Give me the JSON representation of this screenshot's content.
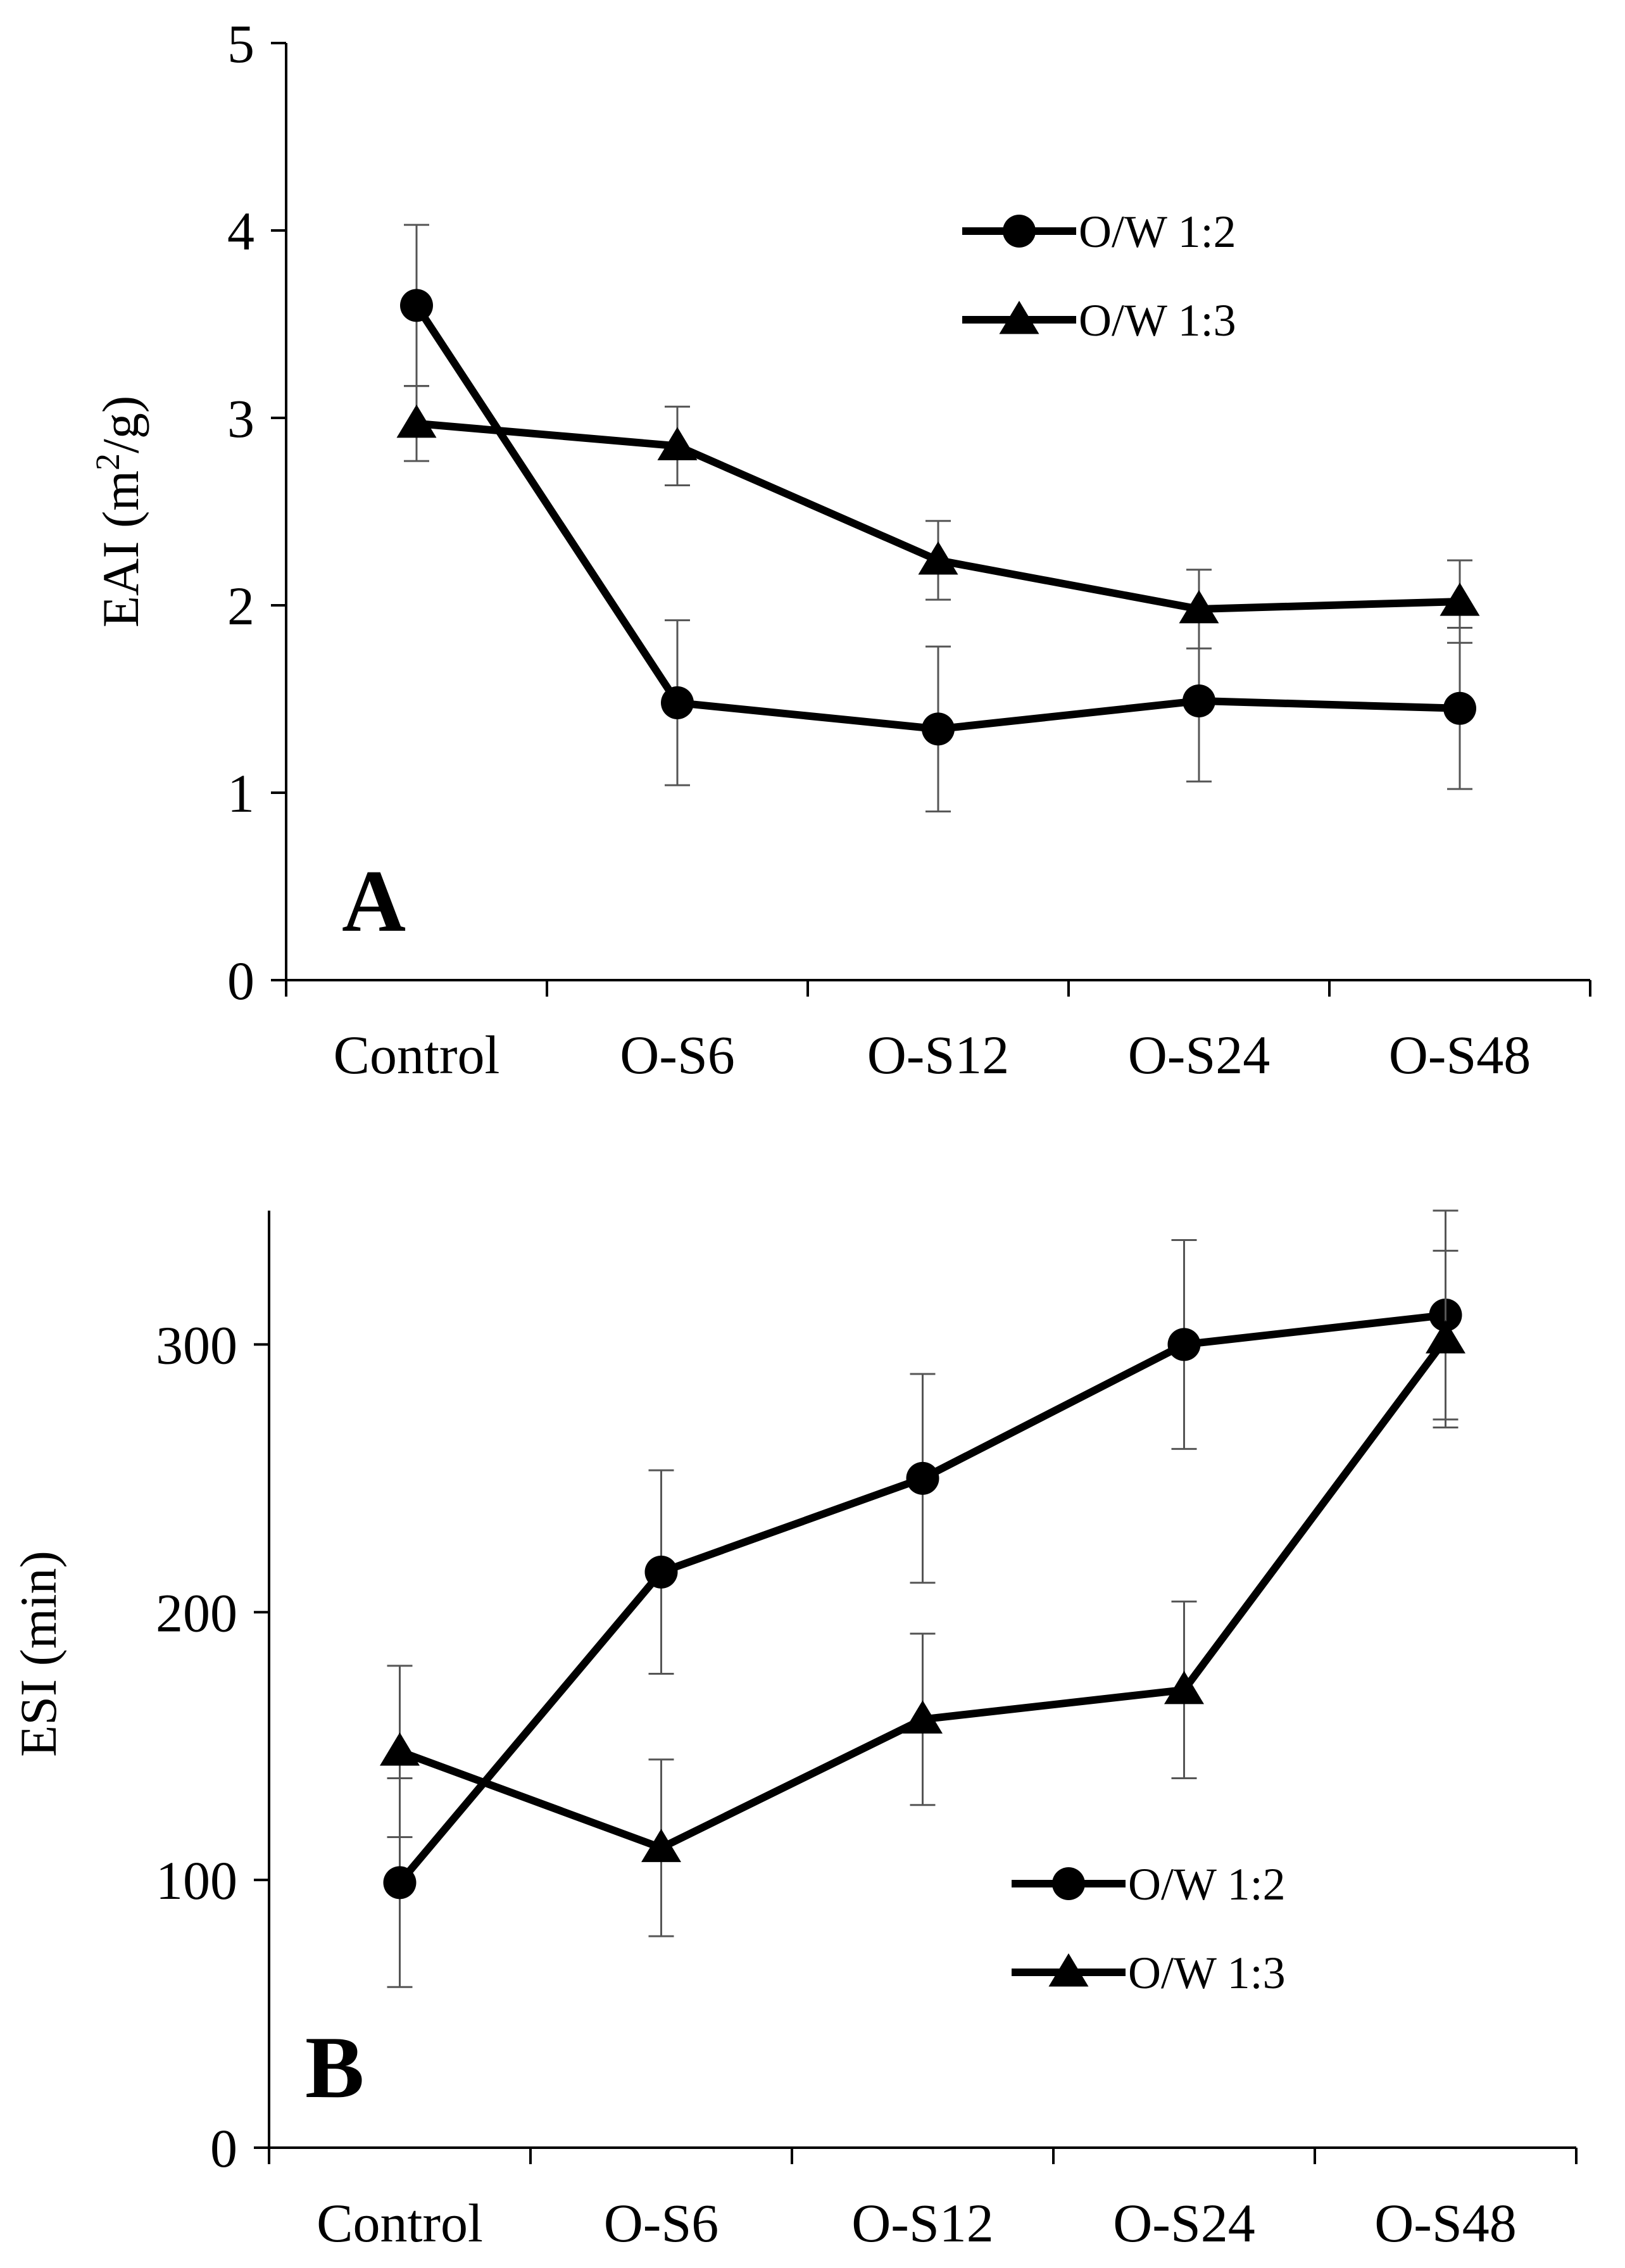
{
  "chart_data": [
    {
      "id": "A",
      "type": "line",
      "panel_label": "A",
      "ylabel_pre": "EAI (m",
      "ylabel_sup": "2",
      "ylabel_post": "/g)",
      "xlabel": "",
      "ylim": [
        0,
        5
      ],
      "yticks": [
        0,
        1,
        2,
        3,
        4,
        5
      ],
      "categories": [
        "Control",
        "O-S6",
        "O-S12",
        "O-S24",
        "O-S48"
      ],
      "legend_position": "top-right",
      "series": [
        {
          "name": "O/W 1:2",
          "marker": "circle",
          "values": [
            3.6,
            1.48,
            1.34,
            1.49,
            1.45
          ],
          "errors": [
            0.43,
            0.44,
            0.44,
            0.43,
            0.43
          ]
        },
        {
          "name": "O/W 1:3",
          "marker": "triangle",
          "values": [
            2.97,
            2.85,
            2.24,
            1.98,
            2.02
          ],
          "errors": [
            0.2,
            0.21,
            0.21,
            0.21,
            0.22
          ]
        }
      ]
    },
    {
      "id": "B",
      "type": "line",
      "panel_label": "B",
      "ylabel_pre": "ESI (min)",
      "ylabel_sup": "",
      "ylabel_post": "",
      "xlabel": "",
      "ylim": [
        0,
        350
      ],
      "yticks": [
        0,
        100,
        200,
        300
      ],
      "categories": [
        "Control",
        "O-S6",
        "O-S12",
        "O-S24",
        "O-S48"
      ],
      "legend_position": "bottom-right",
      "series": [
        {
          "name": "O/W 1:2",
          "marker": "circle",
          "values": [
            99,
            215,
            250,
            300,
            311
          ],
          "errors": [
            39,
            38,
            39,
            39,
            39
          ]
        },
        {
          "name": "O/W 1:3",
          "marker": "triangle",
          "values": [
            148,
            112,
            160,
            171,
            302
          ],
          "errors": [
            32,
            33,
            32,
            33,
            33
          ]
        }
      ]
    }
  ]
}
